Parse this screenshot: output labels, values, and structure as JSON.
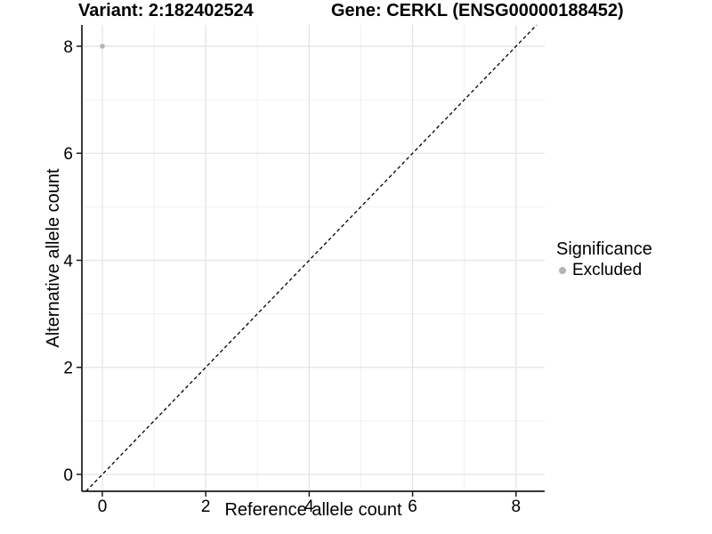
{
  "chart_data": {
    "type": "scatter",
    "title_left": "Variant: 2:182402524",
    "title_right": "Gene: CERKL (ENSG00000188452)",
    "xlabel": "Reference allele count",
    "ylabel": "Alternative allele count",
    "xticks": [
      0,
      2,
      4,
      6,
      8
    ],
    "yticks": [
      0,
      2,
      4,
      6,
      8
    ],
    "xlim": [
      -0.396,
      8.554
    ],
    "ylim": [
      -0.316,
      8.398
    ],
    "grid": {
      "major_x": [
        0,
        2,
        4,
        6,
        8
      ],
      "minor_x": [
        1,
        3,
        5,
        7
      ],
      "major_y": [
        0,
        2,
        4,
        6,
        8
      ],
      "minor_y": [
        1,
        3,
        5,
        7
      ]
    },
    "points": [
      {
        "x": 0,
        "y": 8,
        "significance": "Excluded"
      }
    ],
    "reference_line": {
      "slope": 1,
      "intercept": 0,
      "style": "dashed"
    },
    "legend": {
      "title": "Significance",
      "position": "right",
      "items": [
        {
          "label": "Excluded",
          "color": "#b4b4b4"
        }
      ]
    },
    "colors": {
      "point": "#b4b4b4",
      "grid_major": "#e4e4e4",
      "grid_minor": "#f1f1f1",
      "axis": "#1a1a1a",
      "reference_line": "#000000",
      "text": "#000000"
    }
  }
}
